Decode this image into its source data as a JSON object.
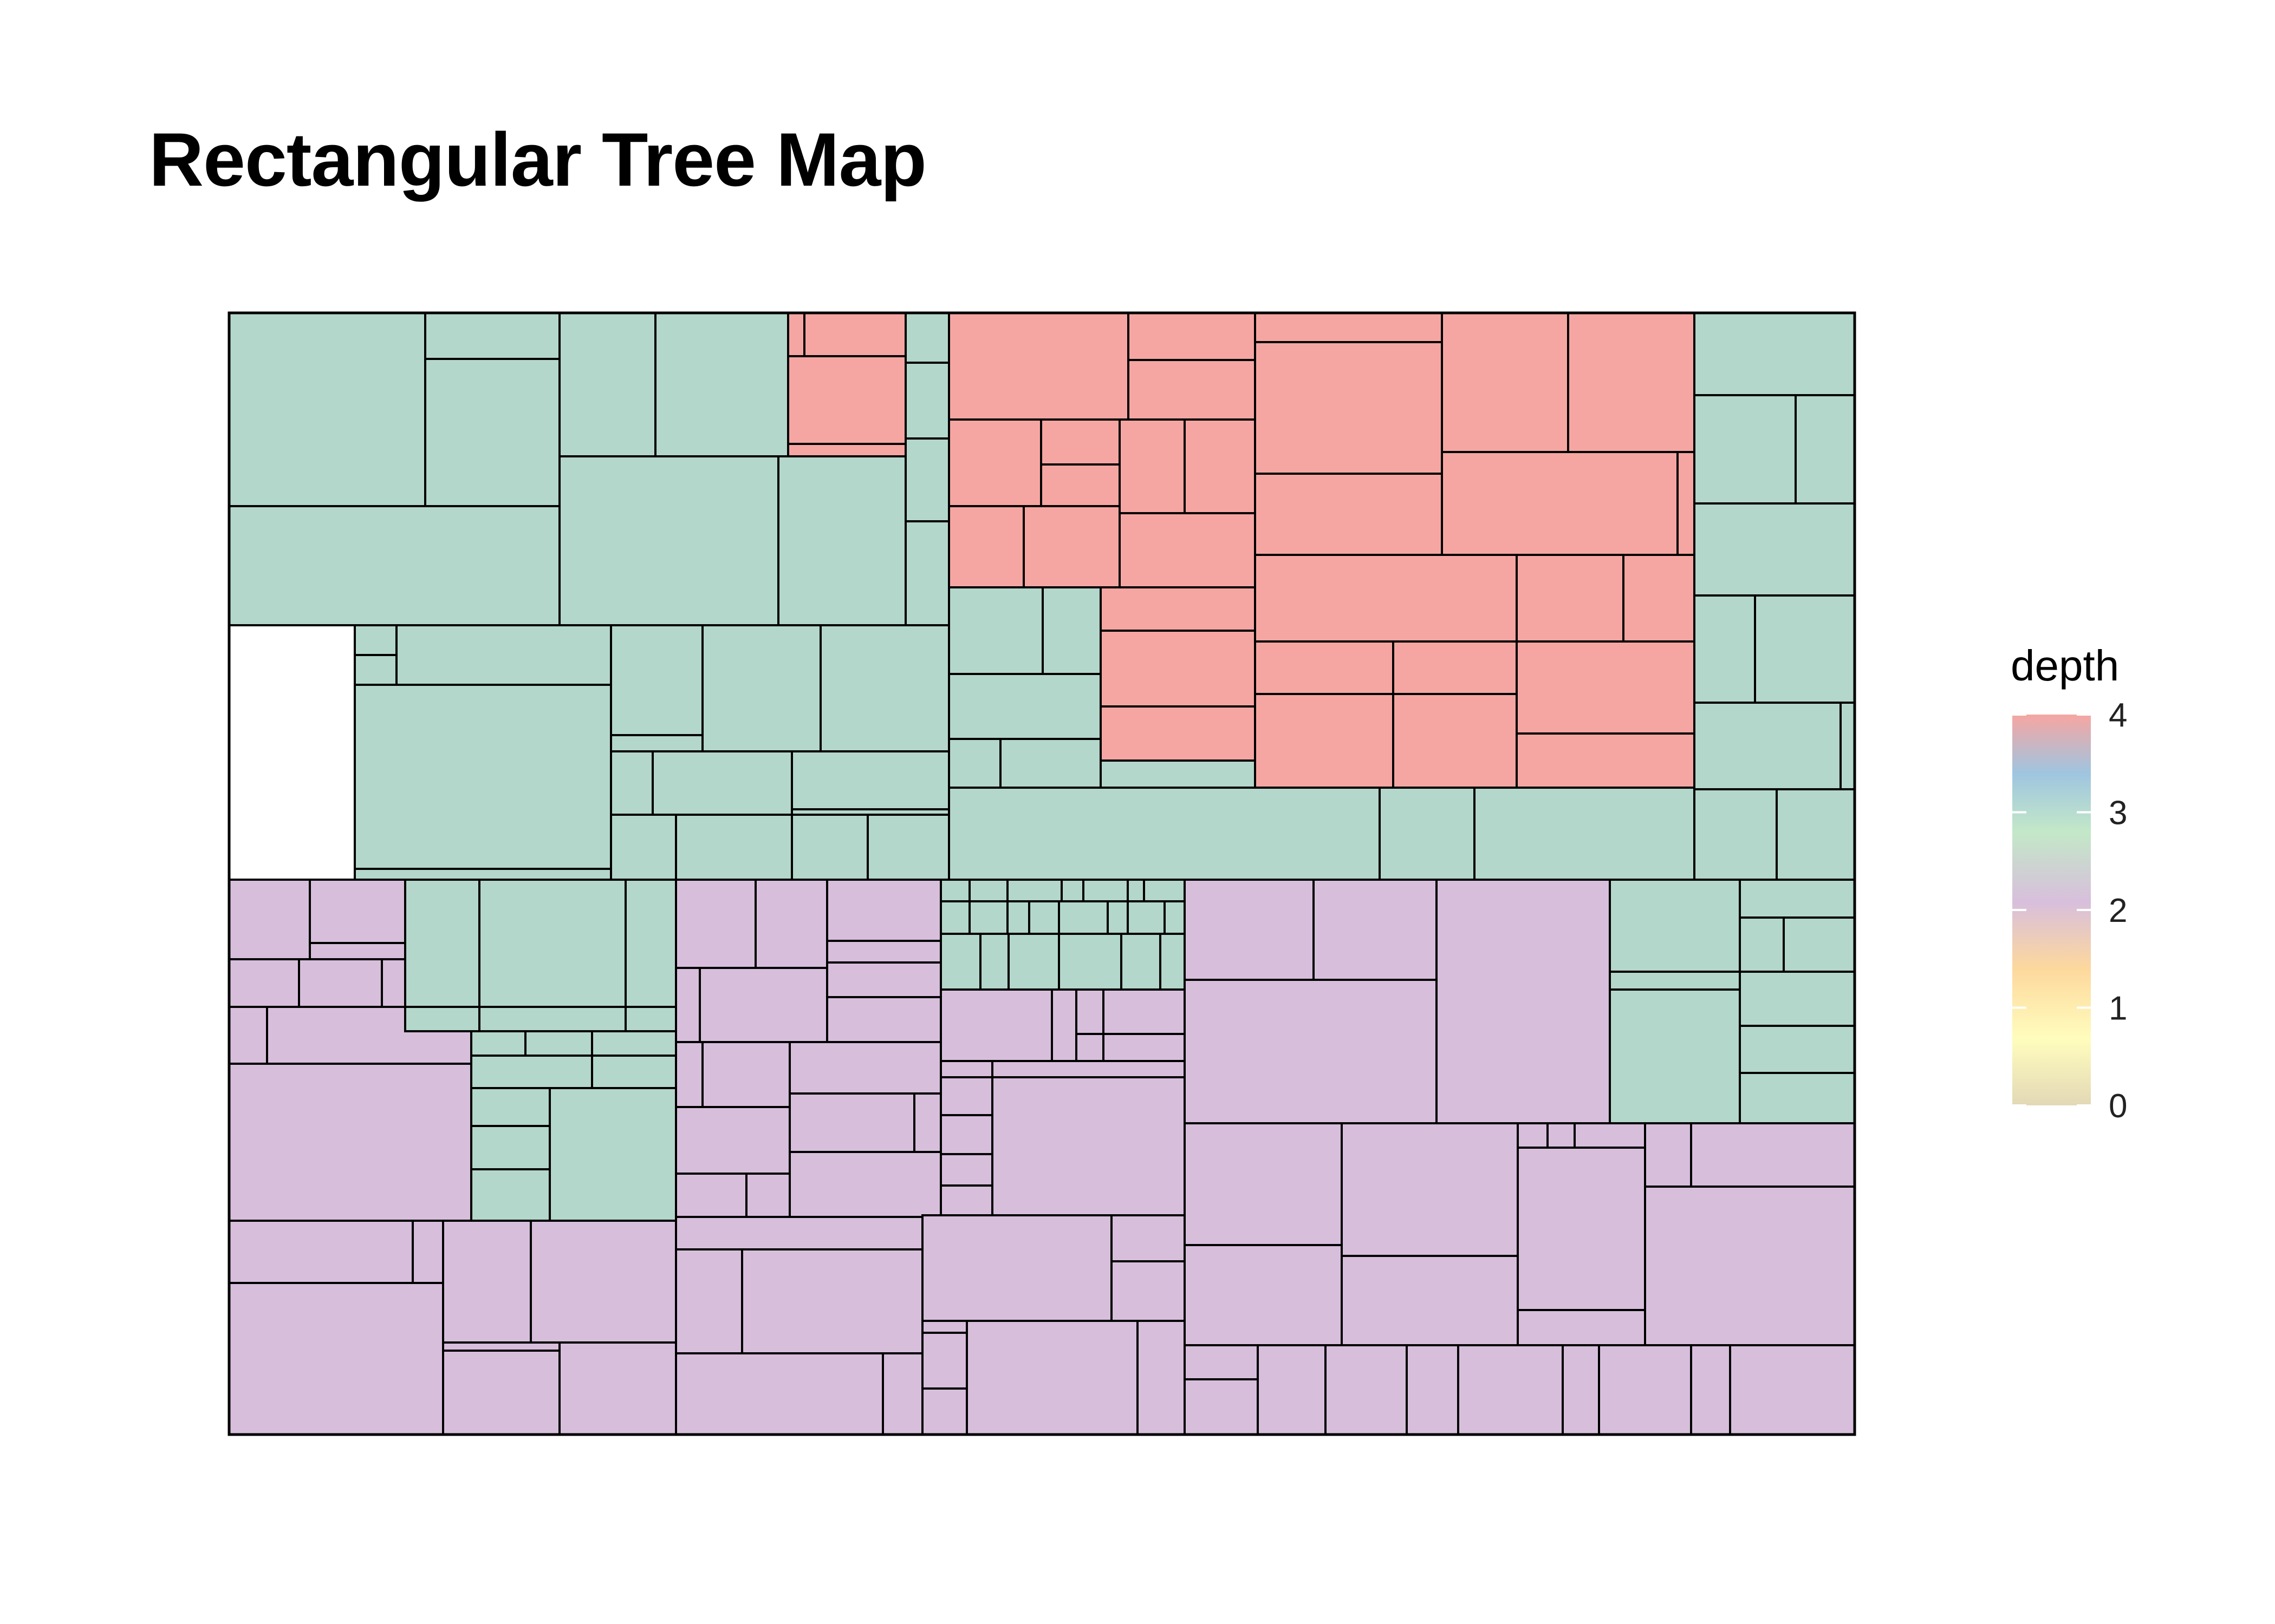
{
  "title": "Rectangular Tree Map",
  "chart_data": {
    "type": "treemap",
    "title": "Rectangular Tree Map",
    "xlabel": "",
    "ylabel": "",
    "grid": false,
    "legend": {
      "title": "depth",
      "placement": "right",
      "type": "continuous color scale",
      "ticks": [
        0,
        1,
        2,
        3,
        4
      ],
      "tick_labels": [
        "0",
        "1",
        "2",
        "3",
        "4"
      ],
      "range": [
        0,
        4
      ],
      "colors": [
        "#e3d8b6",
        "#fffdbd",
        "#fdd89d",
        "#d8bfdc",
        "#c3e8c8",
        "#9fc5e0",
        "#f6a6a2"
      ]
    },
    "colors": {
      "depth_2": "#d7bfdc",
      "depth_3": "#b4d7cb",
      "depth_4": "#f6a6a2",
      "border": "#000000"
    },
    "depth_values": {
      "upper_left_group": 3,
      "top_center_group": 4,
      "upper_right_group": 3,
      "lower_half_group": 2
    }
  }
}
